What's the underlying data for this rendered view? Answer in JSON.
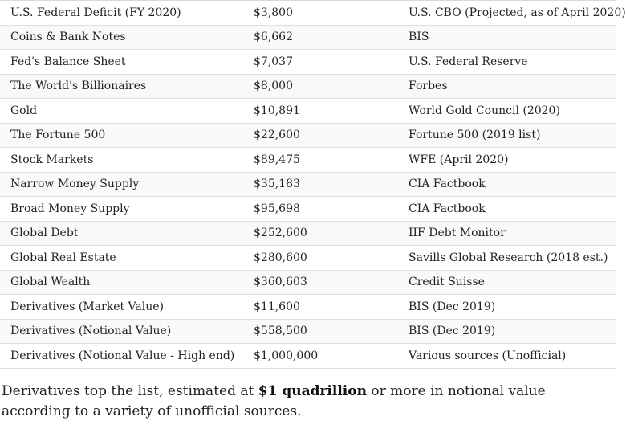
{
  "table": {
    "rows": [
      {
        "item": "U.S. Federal Deficit (FY 2020)",
        "value": "$3,800",
        "source": "U.S. CBO (Projected, as of April 2020)"
      },
      {
        "item": "Coins & Bank Notes",
        "value": "$6,662",
        "source": "BIS"
      },
      {
        "item": "Fed's Balance Sheet",
        "value": "$7,037",
        "source": "U.S. Federal Reserve"
      },
      {
        "item": "The World's Billionaires",
        "value": "$8,000",
        "source": "Forbes"
      },
      {
        "item": "Gold",
        "value": "$10,891",
        "source": "World Gold Council (2020)"
      },
      {
        "item": "The Fortune 500",
        "value": "$22,600",
        "source": "Fortune 500 (2019 list)"
      },
      {
        "item": "Stock Markets",
        "value": "$89,475",
        "source": "WFE (April 2020)"
      },
      {
        "item": "Narrow Money Supply",
        "value": "$35,183",
        "source": "CIA Factbook"
      },
      {
        "item": "Broad Money Supply",
        "value": "$95,698",
        "source": "CIA Factbook"
      },
      {
        "item": "Global Debt",
        "value": "$252,600",
        "source": "IIF Debt Monitor"
      },
      {
        "item": "Global Real Estate",
        "value": "$280,600",
        "source": "Savills Global Research (2018 est.)"
      },
      {
        "item": "Global Wealth",
        "value": "$360,603",
        "source": "Credit Suisse"
      },
      {
        "item": "Derivatives (Market Value)",
        "value": "$11,600",
        "source": "BIS (Dec 2019)"
      },
      {
        "item": "Derivatives (Notional Value)",
        "value": "$558,500",
        "source": "BIS (Dec 2019)"
      },
      {
        "item": "Derivatives (Notional Value - High end)",
        "value": "$1,000,000",
        "source": "Various sources (Unofficial)"
      }
    ]
  },
  "caption": {
    "before": "Derivatives top the list, estimated at ",
    "emphasis": "$1 quadrillion",
    "after": " or more in notional value according to a variety of unofficial sources."
  }
}
